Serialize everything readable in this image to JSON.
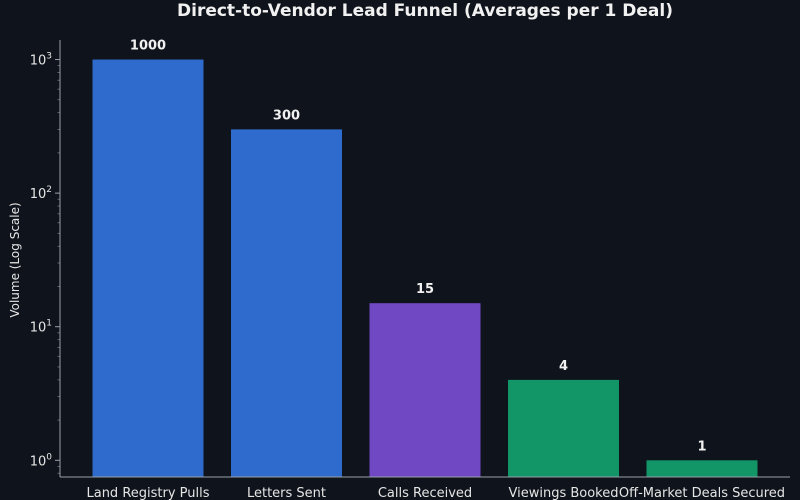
{
  "chart_data": {
    "type": "bar",
    "title": "Direct-to-Vendor Lead Funnel (Averages per 1 Deal)",
    "xlabel": "",
    "ylabel": "Volume (Log Scale)",
    "yscale": "log",
    "ylim": [
      0.75,
      1400
    ],
    "yticks": [
      {
        "value": 1,
        "base": "10",
        "exp": "0"
      },
      {
        "value": 10,
        "base": "10",
        "exp": "1"
      },
      {
        "value": 100,
        "base": "10",
        "exp": "2"
      },
      {
        "value": 1000,
        "base": "10",
        "exp": "3"
      }
    ],
    "categories": [
      "Land Registry Pulls",
      "Letters Sent",
      "Calls Received",
      "Viewings Booked",
      "Off-Market Deals Secured"
    ],
    "values": [
      1000,
      300,
      15,
      4,
      1
    ],
    "value_labels": [
      "1000",
      "300",
      "15",
      "4",
      "1"
    ],
    "colors": [
      "#2f6bcc",
      "#2f6bcc",
      "#7048c4",
      "#129668",
      "#129668"
    ],
    "background": "#0f131b",
    "grid": false,
    "legend": "none"
  }
}
